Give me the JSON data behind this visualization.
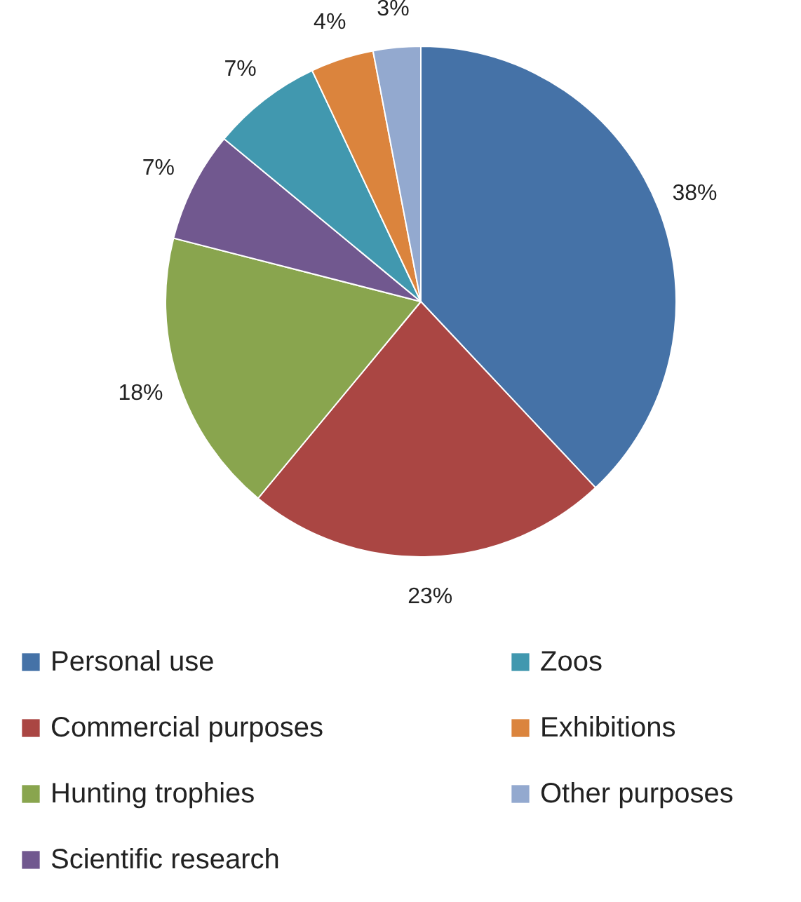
{
  "chart_data": {
    "type": "pie",
    "categories": [
      "Personal use",
      "Commercial purposes",
      "Hunting trophies",
      "Scientific research",
      "Zoos",
      "Exhibitions",
      "Other purposes"
    ],
    "values": [
      38,
      23,
      18,
      7,
      7,
      4,
      3
    ],
    "value_labels": [
      "38%",
      "23%",
      "18%",
      "7%",
      "7%",
      "4%",
      "3%"
    ],
    "colors": [
      "#4572a7",
      "#aa4643",
      "#89a54e",
      "#71588f",
      "#4198af",
      "#db843d",
      "#93a9cf"
    ],
    "legend": "bottom"
  }
}
